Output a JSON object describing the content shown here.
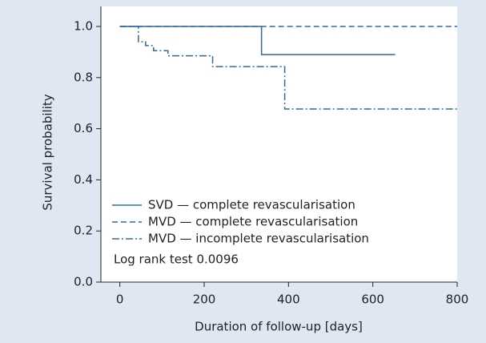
{
  "chart_data": {
    "type": "step",
    "x_label": "Duration of follow-up [days]",
    "y_label": "Survival probability",
    "annotation": "Log rank test 0.0096",
    "series": [
      {
        "name": "SVD — complete revascularisation",
        "color": "#2e6aa0",
        "dash": "solid",
        "x": [
          0,
          336,
          653
        ],
        "values": [
          1.0,
          0.89,
          0.89
        ]
      },
      {
        "name": "MVD — complete revascularisation",
        "color": "#2e6aa0",
        "dash": "dashed",
        "x": [
          0,
          800
        ],
        "values": [
          1.0,
          1.0
        ]
      },
      {
        "name": "MVD — incomplete revascularisation",
        "color": "#2e6aa0",
        "dash": "dashdot",
        "x": [
          0,
          44,
          61,
          80,
          114,
          220,
          391,
          800
        ],
        "values": [
          1.0,
          0.94,
          0.925,
          0.905,
          0.885,
          0.843,
          0.677,
          0.677
        ]
      }
    ],
    "xlim": [
      -45,
      800
    ],
    "xticks": [
      0,
      200,
      400,
      600,
      800
    ],
    "ylim": [
      0,
      1.0
    ],
    "yticks": [
      {
        "value": 0,
        "label": "0.0"
      },
      0.2,
      0.4,
      0.6,
      0.8,
      {
        "value": 1.0,
        "label": "1.0"
      }
    ],
    "grid": false,
    "legend": "lower left"
  }
}
